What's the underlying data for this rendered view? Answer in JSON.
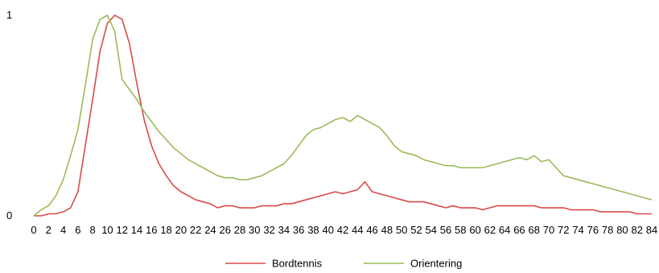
{
  "chart_data": {
    "type": "line",
    "title": "",
    "xlabel": "",
    "ylabel": "",
    "ylim": [
      0,
      1
    ],
    "y_tick_labels": [
      "0",
      "1"
    ],
    "x": [
      0,
      1,
      2,
      3,
      4,
      5,
      6,
      7,
      8,
      9,
      10,
      11,
      12,
      13,
      14,
      15,
      16,
      17,
      18,
      19,
      20,
      21,
      22,
      23,
      24,
      25,
      26,
      27,
      28,
      29,
      30,
      31,
      32,
      33,
      34,
      35,
      36,
      37,
      38,
      39,
      40,
      41,
      42,
      43,
      44,
      45,
      46,
      47,
      48,
      49,
      50,
      51,
      52,
      53,
      54,
      55,
      56,
      57,
      58,
      59,
      60,
      61,
      62,
      63,
      64,
      65,
      66,
      67,
      68,
      69,
      70,
      71,
      72,
      73,
      74,
      75,
      76,
      77,
      78,
      79,
      80,
      81,
      82,
      83,
      84
    ],
    "x_tick_labels": [
      "0",
      "2",
      "4",
      "6",
      "8",
      "10",
      "12",
      "14",
      "16",
      "18",
      "20",
      "22",
      "24",
      "26",
      "28",
      "30",
      "32",
      "34",
      "36",
      "38",
      "40",
      "42",
      "44",
      "46",
      "48",
      "50",
      "52",
      "54",
      "56",
      "58",
      "60",
      "62",
      "64",
      "66",
      "68",
      "70",
      "72",
      "74",
      "76",
      "78",
      "80",
      "82",
      "84"
    ],
    "legend_position": "bottom",
    "grid": false,
    "series": [
      {
        "name": "Bordtennis",
        "color": "#d94a4a",
        "values": [
          0.0,
          0.0,
          0.01,
          0.01,
          0.02,
          0.04,
          0.12,
          0.35,
          0.58,
          0.82,
          0.96,
          1.0,
          0.98,
          0.86,
          0.66,
          0.48,
          0.35,
          0.26,
          0.2,
          0.15,
          0.12,
          0.1,
          0.08,
          0.07,
          0.06,
          0.04,
          0.05,
          0.05,
          0.04,
          0.04,
          0.04,
          0.05,
          0.05,
          0.05,
          0.06,
          0.06,
          0.07,
          0.08,
          0.09,
          0.1,
          0.11,
          0.12,
          0.11,
          0.12,
          0.13,
          0.17,
          0.12,
          0.11,
          0.1,
          0.09,
          0.08,
          0.07,
          0.07,
          0.07,
          0.06,
          0.05,
          0.04,
          0.05,
          0.04,
          0.04,
          0.04,
          0.03,
          0.04,
          0.05,
          0.05,
          0.05,
          0.05,
          0.05,
          0.05,
          0.04,
          0.04,
          0.04,
          0.04,
          0.03,
          0.03,
          0.03,
          0.03,
          0.02,
          0.02,
          0.02,
          0.02,
          0.02,
          0.01,
          0.01,
          0.01
        ]
      },
      {
        "name": "Orientering",
        "color": "#9bbb59",
        "values": [
          0.0,
          0.03,
          0.05,
          0.1,
          0.18,
          0.3,
          0.43,
          0.65,
          0.88,
          0.98,
          1.0,
          0.92,
          0.68,
          0.63,
          0.58,
          0.52,
          0.47,
          0.42,
          0.38,
          0.34,
          0.31,
          0.28,
          0.26,
          0.24,
          0.22,
          0.2,
          0.19,
          0.19,
          0.18,
          0.18,
          0.19,
          0.2,
          0.22,
          0.24,
          0.26,
          0.3,
          0.35,
          0.4,
          0.43,
          0.44,
          0.46,
          0.48,
          0.49,
          0.47,
          0.5,
          0.48,
          0.46,
          0.44,
          0.4,
          0.35,
          0.32,
          0.31,
          0.3,
          0.28,
          0.27,
          0.26,
          0.25,
          0.25,
          0.24,
          0.24,
          0.24,
          0.24,
          0.25,
          0.26,
          0.27,
          0.28,
          0.29,
          0.28,
          0.3,
          0.27,
          0.28,
          0.24,
          0.2,
          0.19,
          0.18,
          0.17,
          0.16,
          0.15,
          0.14,
          0.13,
          0.12,
          0.11,
          0.1,
          0.09,
          0.08
        ]
      }
    ]
  }
}
